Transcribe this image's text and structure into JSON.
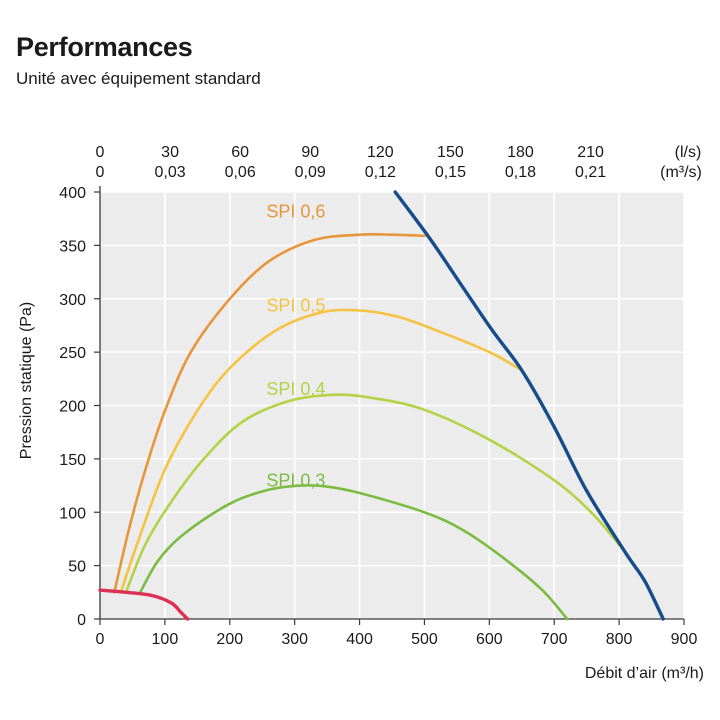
{
  "page": {
    "title": "Performances",
    "subtitle": "Unité avec équipement standard"
  },
  "chart_data": {
    "type": "line",
    "title": "Performances",
    "subtitle": "Unité avec équipement standard",
    "xlabel": "Débit d’air (m³/h)",
    "ylabel": "Pression statique  (Pa)",
    "xlim": [
      0,
      900
    ],
    "ylim": [
      0,
      400
    ],
    "x_ticks": [
      0,
      100,
      200,
      300,
      400,
      500,
      600,
      700,
      800,
      900
    ],
    "y_ticks": [
      0,
      50,
      100,
      150,
      200,
      250,
      300,
      350,
      400
    ],
    "grid": true,
    "top_axis": {
      "ls_unit": "(l/s)",
      "m3s_unit": "(m³/s)",
      "ls_ticks": [
        "0",
        "30",
        "60",
        "90",
        "120",
        "150",
        "180",
        "210"
      ],
      "m3s_ticks": [
        "0",
        "0,03",
        "0,06",
        "0,09",
        "0,12",
        "0,15",
        "0,18",
        "0,21"
      ]
    },
    "series": [
      {
        "name": "SPI 0,6",
        "color": "#e8953a",
        "points": [
          [
            22,
            25
          ],
          [
            45,
            85
          ],
          [
            70,
            140
          ],
          [
            100,
            195
          ],
          [
            140,
            250
          ],
          [
            200,
            300
          ],
          [
            260,
            335
          ],
          [
            330,
            355
          ],
          [
            400,
            360
          ],
          [
            450,
            360
          ],
          [
            500,
            359
          ]
        ]
      },
      {
        "name": "SPI 0,5",
        "color": "#f5c341",
        "points": [
          [
            32,
            25
          ],
          [
            60,
            75
          ],
          [
            100,
            140
          ],
          [
            150,
            195
          ],
          [
            200,
            235
          ],
          [
            270,
            270
          ],
          [
            340,
            287
          ],
          [
            400,
            289
          ],
          [
            460,
            283
          ],
          [
            520,
            270
          ],
          [
            600,
            250
          ],
          [
            650,
            233
          ]
        ]
      },
      {
        "name": "SPI 0,4",
        "color": "#b5d146",
        "points": [
          [
            40,
            25
          ],
          [
            70,
            70
          ],
          [
            110,
            110
          ],
          [
            160,
            150
          ],
          [
            220,
            185
          ],
          [
            290,
            204
          ],
          [
            360,
            210
          ],
          [
            420,
            207
          ],
          [
            500,
            196
          ],
          [
            600,
            168
          ],
          [
            700,
            130
          ],
          [
            760,
            98
          ],
          [
            810,
            62
          ]
        ]
      },
      {
        "name": "SPI 0,3",
        "color": "#7bbb42",
        "points": [
          [
            62,
            25
          ],
          [
            90,
            55
          ],
          [
            130,
            80
          ],
          [
            200,
            108
          ],
          [
            260,
            121
          ],
          [
            310,
            125
          ],
          [
            350,
            124
          ],
          [
            400,
            118
          ],
          [
            500,
            100
          ],
          [
            560,
            83
          ],
          [
            620,
            58
          ],
          [
            680,
            28
          ],
          [
            720,
            0
          ]
        ]
      },
      {
        "name": "",
        "color": "#164c8a",
        "points": [
          [
            455,
            400
          ],
          [
            510,
            355
          ],
          [
            560,
            310
          ],
          [
            605,
            270
          ],
          [
            650,
            233
          ],
          [
            700,
            180
          ],
          [
            750,
            120
          ],
          [
            810,
            62
          ],
          [
            840,
            35
          ],
          [
            868,
            0
          ]
        ]
      },
      {
        "name": "",
        "color": "#dd3054",
        "points": [
          [
            0,
            27
          ],
          [
            40,
            25
          ],
          [
            80,
            22
          ],
          [
            110,
            15
          ],
          [
            125,
            6
          ],
          [
            135,
            0
          ]
        ]
      }
    ]
  }
}
